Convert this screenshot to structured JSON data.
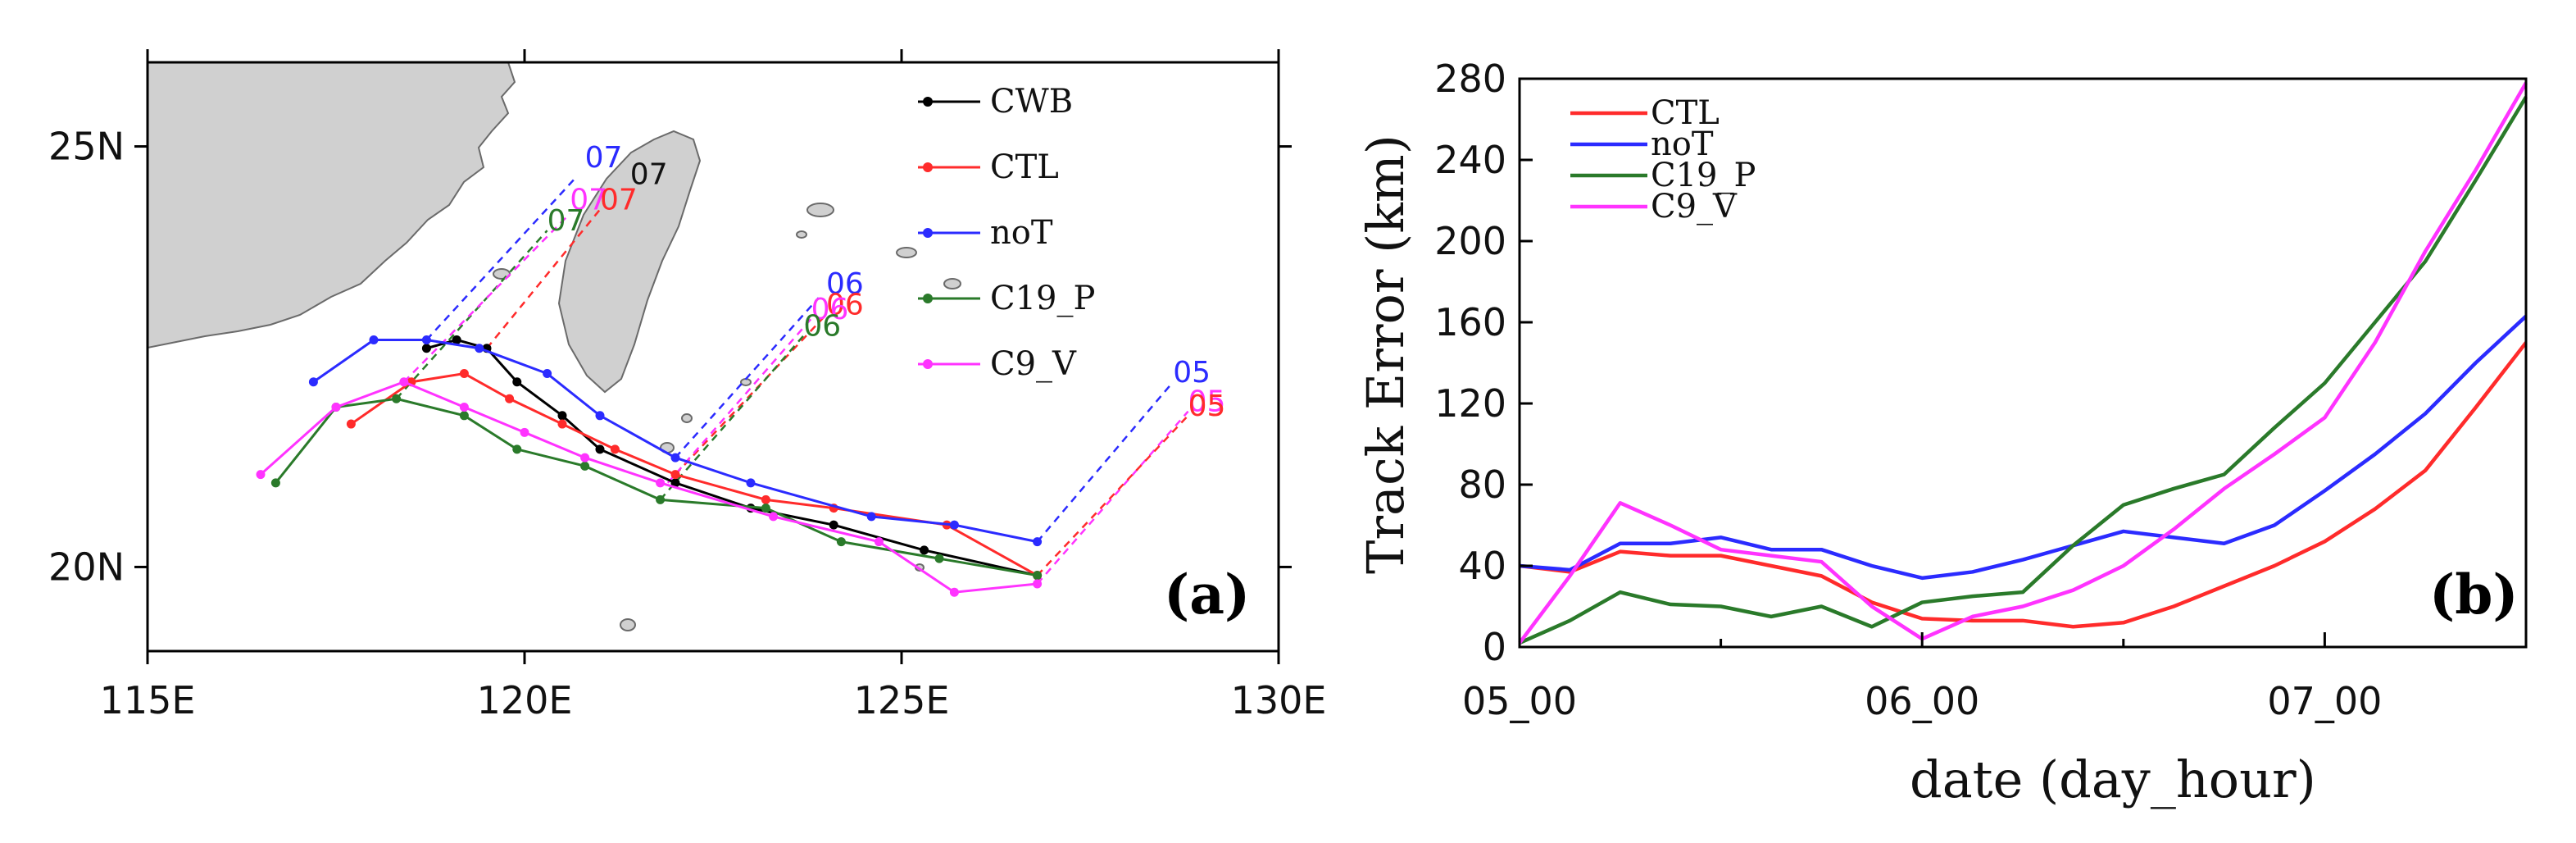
{
  "chart_data": [
    {
      "panel": "(a)",
      "type": "line",
      "subtype": "map-tracks",
      "xlim": [
        115,
        130
      ],
      "ylim": [
        19,
        26
      ],
      "x_ticks": [
        115,
        120,
        125,
        130
      ],
      "x_tick_labels": [
        "115E",
        "120E",
        "125E",
        "130E"
      ],
      "y_ticks": [
        20,
        25
      ],
      "y_tick_labels": [
        "20N",
        "25N"
      ],
      "legend_position": "top-right",
      "colors": {
        "CWB": "#000000",
        "CTL": "#ff2b2b",
        "noT": "#2b2bff",
        "C19_P": "#2a7a2a",
        "C9_V": "#ff33ff"
      },
      "series": [
        {
          "name": "CWB",
          "lon": [
            118.7,
            119.1,
            119.5,
            119.9,
            120.5,
            121.0,
            122.0,
            123.0,
            124.1,
            125.3,
            126.8
          ],
          "lat": [
            22.6,
            22.7,
            22.6,
            22.2,
            21.8,
            21.4,
            21.0,
            20.7,
            20.5,
            20.2,
            19.9
          ]
        },
        {
          "name": "CTL",
          "lon": [
            117.7,
            118.5,
            119.2,
            119.8,
            120.5,
            121.2,
            122.0,
            123.2,
            124.1,
            125.6,
            126.8
          ],
          "lat": [
            21.7,
            22.2,
            22.3,
            22.0,
            21.7,
            21.4,
            21.1,
            20.8,
            20.7,
            20.5,
            19.9
          ]
        },
        {
          "name": "noT",
          "lon": [
            117.2,
            118.0,
            118.7,
            119.4,
            120.3,
            121.0,
            122.0,
            123.0,
            124.6,
            125.7,
            126.8
          ],
          "lat": [
            22.2,
            22.7,
            22.7,
            22.6,
            22.3,
            21.8,
            21.3,
            21.0,
            20.6,
            20.5,
            20.3
          ]
        },
        {
          "name": "C19_P",
          "lon": [
            116.7,
            117.5,
            118.3,
            119.2,
            119.9,
            120.8,
            121.8,
            123.2,
            124.2,
            125.5,
            126.8
          ],
          "lat": [
            21.0,
            21.9,
            22.0,
            21.8,
            21.4,
            21.2,
            20.8,
            20.7,
            20.3,
            20.1,
            19.9
          ]
        },
        {
          "name": "C9_V",
          "lon": [
            116.5,
            117.5,
            118.4,
            119.2,
            120.0,
            120.8,
            121.8,
            123.3,
            124.7,
            125.7,
            126.8
          ],
          "lat": [
            21.1,
            21.9,
            22.2,
            21.9,
            21.6,
            21.3,
            21.0,
            20.6,
            20.3,
            19.7,
            19.8
          ]
        }
      ],
      "time_labels": [
        {
          "text": "07",
          "color": "#2b2bff",
          "lon": 120.8,
          "lat": 24.75
        },
        {
          "text": "07",
          "color": "#111111",
          "lon": 121.4,
          "lat": 24.55
        },
        {
          "text": "07",
          "color": "#ff33ff",
          "lon": 120.6,
          "lat": 24.25
        },
        {
          "text": "07",
          "color": "#ff2b2b",
          "lon": 121.0,
          "lat": 24.25
        },
        {
          "text": "07",
          "color": "#2a7a2a",
          "lon": 120.3,
          "lat": 24.0
        },
        {
          "text": "06",
          "color": "#2b2bff",
          "lon": 124.0,
          "lat": 23.25
        },
        {
          "text": "06",
          "color": "#ff2b2b",
          "lon": 124.0,
          "lat": 23.0
        },
        {
          "text": "06",
          "color": "#ff33ff",
          "lon": 123.8,
          "lat": 22.95
        },
        {
          "text": "06",
          "color": "#2a7a2a",
          "lon": 123.7,
          "lat": 22.75
        },
        {
          "text": "05",
          "color": "#2b2bff",
          "lon": 128.6,
          "lat": 22.2
        },
        {
          "text": "05",
          "color": "#ff33ff",
          "lon": 128.8,
          "lat": 21.85
        },
        {
          "text": "05",
          "color": "#ff2b2b",
          "lon": 128.8,
          "lat": 21.8
        }
      ],
      "projection_lines": [
        {
          "color": "#2b2bff",
          "from": [
            118.7,
            22.7
          ],
          "to": [
            120.7,
            24.65
          ]
        },
        {
          "color": "#2a7a2a",
          "from": [
            118.3,
            22.0
          ],
          "to": [
            120.3,
            24.0
          ]
        },
        {
          "color": "#ff33ff",
          "from": [
            118.4,
            22.2
          ],
          "to": [
            120.6,
            24.2
          ]
        },
        {
          "color": "#ff2b2b",
          "from": [
            119.5,
            22.6
          ],
          "to": [
            121.0,
            24.25
          ]
        },
        {
          "color": "#2b2bff",
          "from": [
            122.0,
            21.3
          ],
          "to": [
            123.9,
            23.2
          ]
        },
        {
          "color": "#ff2b2b",
          "from": [
            122.0,
            21.1
          ],
          "to": [
            124.0,
            23.0
          ]
        },
        {
          "color": "#ff33ff",
          "from": [
            121.9,
            21.0
          ],
          "to": [
            123.8,
            22.95
          ]
        },
        {
          "color": "#2a7a2a",
          "from": [
            121.8,
            20.8
          ],
          "to": [
            123.7,
            22.75
          ]
        },
        {
          "color": "#2b2bff",
          "from": [
            126.8,
            20.3
          ],
          "to": [
            128.6,
            22.2
          ]
        },
        {
          "color": "#ff33ff",
          "from": [
            126.8,
            19.8
          ],
          "to": [
            128.8,
            21.85
          ]
        },
        {
          "color": "#ff2b2b",
          "from": [
            126.8,
            19.9
          ],
          "to": [
            128.8,
            21.8
          ]
        }
      ]
    },
    {
      "panel": "(b)",
      "type": "line",
      "xlabel": "date (day_hour)",
      "ylabel": "Track Error (km)",
      "ylim": [
        0,
        280
      ],
      "y_ticks": [
        0,
        40,
        80,
        120,
        160,
        200,
        240,
        280
      ],
      "xlim": [
        0,
        60
      ],
      "x_ticks": [
        0,
        24,
        48
      ],
      "x_tick_labels": [
        "05_00",
        "06_00",
        "07_00"
      ],
      "legend_position": "top-left",
      "x": [
        0,
        3,
        6,
        9,
        12,
        15,
        18,
        21,
        24,
        27,
        30,
        33,
        36,
        39,
        42,
        45,
        48,
        51,
        54,
        57,
        60
      ],
      "series": [
        {
          "name": "CTL",
          "color": "#ff2b2b",
          "values": [
            40,
            37,
            47,
            45,
            45,
            40,
            35,
            22,
            14,
            13,
            13,
            10,
            12,
            20,
            30,
            40,
            52,
            68,
            87,
            118,
            150
          ]
        },
        {
          "name": "noT",
          "color": "#2b2bff",
          "values": [
            40,
            38,
            51,
            51,
            54,
            48,
            48,
            40,
            34,
            37,
            43,
            50,
            57,
            54,
            51,
            60,
            77,
            95,
            115,
            140,
            163
          ]
        },
        {
          "name": "C19_P",
          "color": "#2a7a2a",
          "values": [
            2,
            13,
            27,
            21,
            20,
            15,
            20,
            10,
            22,
            25,
            27,
            50,
            70,
            78,
            85,
            108,
            130,
            160,
            190,
            230,
            271
          ]
        },
        {
          "name": "C9_V",
          "color": "#ff33ff",
          "values": [
            2,
            35,
            71,
            60,
            48,
            45,
            42,
            20,
            4,
            15,
            20,
            28,
            40,
            58,
            78,
            95,
            113,
            150,
            195,
            235,
            278
          ]
        }
      ]
    }
  ]
}
